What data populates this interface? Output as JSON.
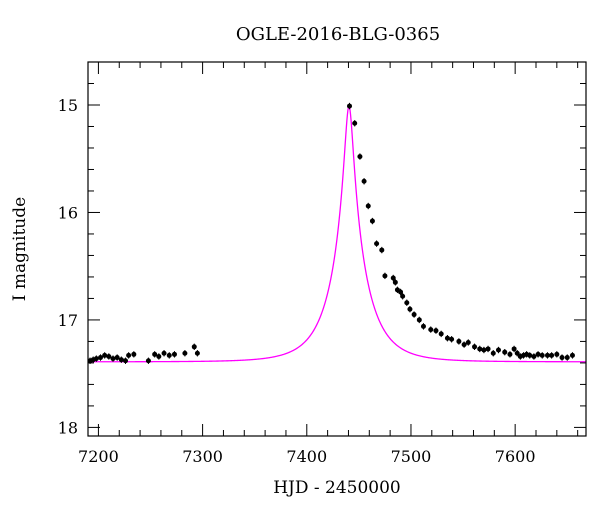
{
  "chart_data": {
    "type": "scatter",
    "title": "OGLE-2016-BLG-0365",
    "xlabel": "HJD - 2450000",
    "ylabel": "I magnitude",
    "xlim": [
      7190,
      7668
    ],
    "ylim": [
      18.08,
      14.6
    ],
    "y_inverted": true,
    "x_ticks_major": [
      7200,
      7300,
      7400,
      7500,
      7600
    ],
    "x_ticks_minor_step": 20,
    "y_ticks_major": [
      15,
      16,
      17,
      18
    ],
    "y_ticks_minor_step": 0.2,
    "grid": false,
    "legend": "none",
    "colors": {
      "points": "#000000",
      "model": "#ff00ff"
    },
    "model": {
      "type": "point-lens",
      "t0": 7440.5,
      "u0": 0.12,
      "tE": 32,
      "baseline_mag": 17.39,
      "peak_mag": 15.01
    },
    "series": [
      {
        "marker": "filled-circle",
        "x": [
          7192,
          7195,
          7198,
          7202,
          7206,
          7210,
          7214,
          7218,
          7222,
          7226,
          7229,
          7234,
          7248,
          7254,
          7258,
          7263,
          7268,
          7273,
          7283,
          7292,
          7295,
          7441,
          7446,
          7451,
          7455,
          7459,
          7463,
          7467,
          7472,
          7475,
          7483,
          7485,
          7487,
          7490,
          7492,
          7496,
          7499,
          7503,
          7508,
          7512,
          7519,
          7524,
          7529,
          7535,
          7539,
          7546,
          7551,
          7555,
          7561,
          7566,
          7570,
          7574,
          7579,
          7584,
          7590,
          7595,
          7599,
          7602,
          7605,
          7608,
          7611,
          7614,
          7618,
          7622,
          7626,
          7631,
          7635,
          7640,
          7645,
          7650,
          7655
        ],
        "y": [
          17.38,
          17.37,
          17.36,
          17.35,
          17.33,
          17.34,
          17.36,
          17.35,
          17.37,
          17.38,
          17.33,
          17.32,
          17.38,
          17.32,
          17.34,
          17.31,
          17.33,
          17.32,
          17.31,
          17.25,
          17.31,
          15.01,
          15.17,
          15.48,
          15.71,
          15.94,
          16.08,
          16.29,
          16.35,
          16.59,
          16.61,
          16.65,
          16.72,
          16.74,
          16.78,
          16.84,
          16.9,
          16.95,
          17.0,
          17.06,
          17.09,
          17.1,
          17.13,
          17.17,
          17.18,
          17.2,
          17.23,
          17.21,
          17.25,
          17.27,
          17.28,
          17.27,
          17.31,
          17.28,
          17.3,
          17.32,
          17.27,
          17.31,
          17.34,
          17.33,
          17.32,
          17.33,
          17.34,
          17.32,
          17.33,
          17.33,
          17.33,
          17.32,
          17.35,
          17.35,
          17.33
        ]
      }
    ]
  }
}
